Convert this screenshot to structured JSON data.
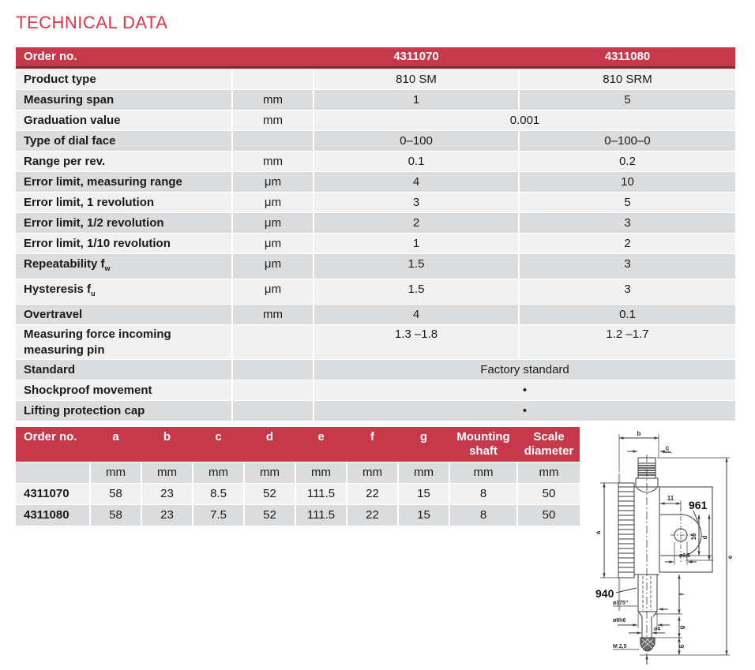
{
  "page": {
    "title": "TECHNICAL DATA"
  },
  "colors": {
    "accent_red": "#c7384a",
    "title_red": "#e2344a",
    "row_light": "#f1f1f2",
    "row_dark": "#dbdcdd",
    "header_underline": "#8e2433"
  },
  "table1": {
    "header": {
      "label": "Order no.",
      "col1": "4311070",
      "col2": "4311080"
    },
    "rows": [
      {
        "label": "Product type",
        "unit": "",
        "v1": "810 SM",
        "v2": "810 SRM"
      },
      {
        "label": "Measuring span",
        "unit": "mm",
        "v1": "1",
        "v2": "5"
      },
      {
        "label": "Graduation value",
        "unit": "mm",
        "span": "0.001"
      },
      {
        "label": "Type of dial face",
        "unit": "",
        "v1": "0–100",
        "v2": "0–100–0"
      },
      {
        "label": "Range per rev.",
        "unit": "mm",
        "v1": "0.1",
        "v2": "0.2"
      },
      {
        "label": "Error limit, measuring range",
        "unit": "μm",
        "v1": "4",
        "v2": "10"
      },
      {
        "label": "Error limit, 1 revolution",
        "unit": "μm",
        "v1": "3",
        "v2": "5"
      },
      {
        "label": "Error limit, 1/2 revolution",
        "unit": "μm",
        "v1": "2",
        "v2": "3"
      },
      {
        "label": "Error limit, 1/10 revolution",
        "unit": "μm",
        "v1": "1",
        "v2": "2"
      },
      {
        "label": "Repeatability f",
        "sub": "w",
        "unit": "μm",
        "v1": "1.5",
        "v2": "3"
      },
      {
        "label": "Hysteresis f",
        "sub": "u",
        "unit": "μm",
        "v1": "1.5",
        "v2": "3"
      },
      {
        "label": "Overtravel",
        "unit": "mm",
        "v1": "4",
        "v2": "0.1"
      },
      {
        "label": "Measuring force incoming measuring pin",
        "unit": "",
        "v1": "1.3 –1.8",
        "v2": "1.2 –1.7"
      },
      {
        "label": "Standard",
        "unit": "",
        "span": "Factory standard"
      },
      {
        "label": "Shockproof movement",
        "unit": "",
        "span": "•"
      },
      {
        "label": "Lifting protection cap",
        "unit": "",
        "span": "•"
      }
    ]
  },
  "table2": {
    "headers": [
      "Order no.",
      "a",
      "b",
      "c",
      "d",
      "e",
      "f",
      "g",
      "Mounting shaft",
      "Scale diameter"
    ],
    "units": [
      "",
      "mm",
      "mm",
      "mm",
      "mm",
      "mm",
      "mm",
      "mm",
      "mm",
      "mm"
    ],
    "rows": [
      {
        "order": "4311070",
        "values": [
          "58",
          "23",
          "8.5",
          "52",
          "111.5",
          "22",
          "15",
          "8",
          "50"
        ]
      },
      {
        "order": "4311080",
        "values": [
          "58",
          "23",
          "7.5",
          "52",
          "111.5",
          "22",
          "15",
          "8",
          "50"
        ]
      }
    ]
  },
  "drawing": {
    "callout_upper": "961",
    "callout_lower": "940",
    "dims": {
      "a": "a",
      "b": "b",
      "c": "c",
      "d": "d",
      "e": "e",
      "f": "f",
      "g": "g",
      "eleven": "11",
      "sixteen": "16",
      "hole": "ø6,5",
      "shank": "ø375\"",
      "stem": "ø8h6",
      "spindle": "ø4",
      "thread": "M 2,5",
      "six": "6"
    }
  }
}
